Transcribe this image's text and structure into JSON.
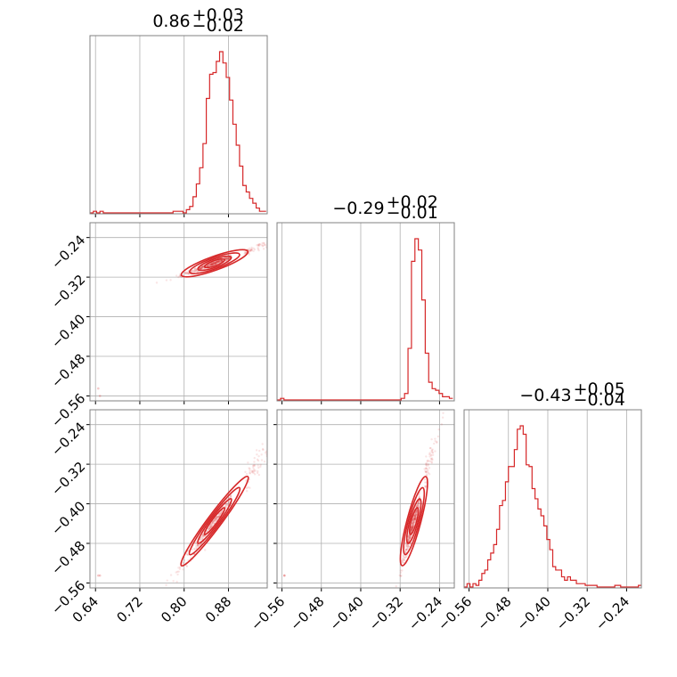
{
  "chart_data": {
    "type": "corner",
    "parameters": [
      {
        "range": [
          0.63,
          0.95
        ],
        "ticks": [
          0.64,
          0.72,
          0.8,
          0.88
        ],
        "tick_labels": [
          "0.64",
          "0.72",
          "0.80",
          "0.88"
        ],
        "title": {
          "median": "0.86",
          "plus": "+0.03",
          "minus": "−0.02"
        }
      },
      {
        "range": [
          -0.57,
          -0.21
        ],
        "ticks": [
          -0.56,
          -0.48,
          -0.4,
          -0.32,
          -0.24
        ],
        "tick_labels": [
          "−0.56",
          "−0.48",
          "−0.40",
          "−0.32",
          "−0.24"
        ],
        "title": {
          "median": "−0.29",
          "plus": "+0.02",
          "minus": "−0.01"
        }
      },
      {
        "range": [
          -0.57,
          -0.21
        ],
        "ticks": [
          -0.56,
          -0.48,
          -0.4,
          -0.32,
          -0.24
        ],
        "tick_labels": [
          "−0.56",
          "−0.48",
          "−0.40",
          "−0.32",
          "−0.24"
        ],
        "title": {
          "median": "−0.43",
          "plus": "+0.05",
          "minus": "−0.04"
        }
      }
    ],
    "histograms": [
      {
        "param": 0,
        "bins": [
          0.63,
          0.636,
          0.642,
          0.648,
          0.654,
          0.66,
          0.666,
          0.672,
          0.678,
          0.684,
          0.69,
          0.696,
          0.702,
          0.708,
          0.714,
          0.72,
          0.726,
          0.732,
          0.738,
          0.744,
          0.75,
          0.756,
          0.762,
          0.768,
          0.774,
          0.78,
          0.786,
          0.792,
          0.798,
          0.804,
          0.81,
          0.816,
          0.822,
          0.828,
          0.834,
          0.84,
          0.846,
          0.852,
          0.858,
          0.864,
          0.87,
          0.876,
          0.882,
          0.888,
          0.894,
          0.9,
          0.906,
          0.912,
          0.918,
          0.924,
          0.93,
          0.936,
          0.942,
          0.948
        ],
        "counts": [
          0,
          1,
          0,
          1,
          0,
          0,
          0,
          0,
          0,
          0,
          0,
          0,
          0,
          0,
          0,
          0,
          0,
          0,
          0,
          0,
          0,
          0,
          0,
          0,
          0,
          1,
          1,
          1,
          0,
          2,
          4,
          10,
          18,
          28,
          43,
          71,
          86,
          87,
          94,
          100,
          93,
          84,
          70,
          55,
          42,
          29,
          17,
          13,
          9,
          6,
          3,
          1,
          1
        ]
      },
      {
        "param": 1,
        "bins": [
          -0.57,
          -0.563,
          -0.556,
          -0.549,
          -0.542,
          -0.535,
          -0.528,
          -0.521,
          -0.514,
          -0.507,
          -0.5,
          -0.493,
          -0.486,
          -0.479,
          -0.472,
          -0.465,
          -0.458,
          -0.451,
          -0.444,
          -0.437,
          -0.43,
          -0.423,
          -0.416,
          -0.409,
          -0.402,
          -0.395,
          -0.388,
          -0.381,
          -0.374,
          -0.367,
          -0.36,
          -0.353,
          -0.346,
          -0.339,
          -0.332,
          -0.325,
          -0.318,
          -0.311,
          -0.304,
          -0.297,
          -0.29,
          -0.283,
          -0.276,
          -0.269,
          -0.262,
          -0.255,
          -0.248,
          -0.241,
          -0.234,
          -0.227,
          -0.22,
          -0.213
        ],
        "counts": [
          0,
          1,
          0,
          0,
          0,
          0,
          0,
          0,
          0,
          0,
          0,
          0,
          0,
          0,
          0,
          0,
          0,
          0,
          0,
          0,
          0,
          0,
          0,
          0,
          0,
          0,
          0,
          0,
          0,
          0,
          0,
          0,
          0,
          0,
          0,
          0,
          1,
          4,
          32,
          86,
          100,
          93,
          62,
          29,
          11,
          7,
          6,
          4,
          2,
          2,
          1
        ]
      },
      {
        "param": 2,
        "bins": [
          -0.57,
          -0.564,
          -0.558,
          -0.552,
          -0.546,
          -0.54,
          -0.534,
          -0.528,
          -0.522,
          -0.516,
          -0.51,
          -0.504,
          -0.498,
          -0.492,
          -0.486,
          -0.48,
          -0.474,
          -0.468,
          -0.462,
          -0.456,
          -0.45,
          -0.444,
          -0.438,
          -0.432,
          -0.426,
          -0.42,
          -0.414,
          -0.408,
          -0.402,
          -0.396,
          -0.39,
          -0.384,
          -0.378,
          -0.372,
          -0.366,
          -0.36,
          -0.354,
          -0.348,
          -0.342,
          -0.336,
          -0.33,
          -0.324,
          -0.318,
          -0.312,
          -0.306,
          -0.3,
          -0.294,
          -0.288,
          -0.282,
          -0.276,
          -0.27,
          -0.264,
          -0.258,
          -0.252,
          -0.246,
          -0.24,
          -0.234,
          -0.228,
          -0.222,
          -0.216,
          -0.21
        ],
        "counts": [
          0,
          2,
          0,
          2,
          1,
          4,
          8,
          10,
          16,
          20,
          25,
          34,
          48,
          51,
          62,
          71,
          71,
          81,
          93,
          95,
          90,
          72,
          71,
          58,
          52,
          46,
          42,
          36,
          28,
          22,
          12,
          10,
          10,
          6,
          4,
          6,
          4,
          4,
          2,
          2,
          2,
          1,
          1,
          1,
          1,
          0,
          0,
          0,
          0,
          0,
          0,
          1,
          1,
          0,
          0,
          0,
          0,
          0,
          0,
          1
        ]
      }
    ],
    "scatter_pairs": [
      {
        "x_param": 0,
        "y_param": 1
      },
      {
        "x_param": 0,
        "y_param": 2
      },
      {
        "x_param": 1,
        "y_param": 2
      }
    ],
    "series_color": "#d62728",
    "grid": true,
    "frame_color": "#808080",
    "grid_color": "#b0b0b0"
  }
}
